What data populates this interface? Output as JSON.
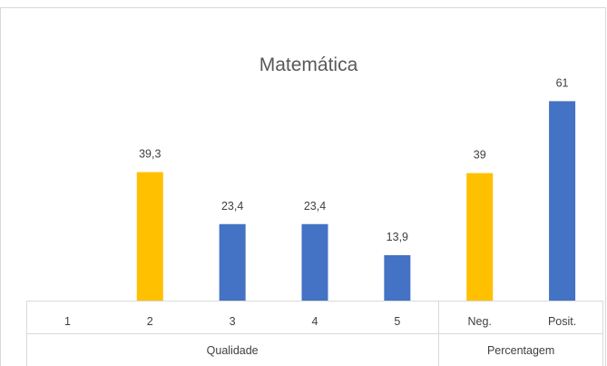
{
  "chart_data": {
    "type": "bar",
    "title": "Matemática",
    "categories": [
      "1",
      "2",
      "3",
      "4",
      "5",
      "Neg.",
      "Posit."
    ],
    "groups": [
      {
        "label": "Qualidade",
        "categories": [
          "1",
          "2",
          "3",
          "4",
          "5"
        ]
      },
      {
        "label": "Percentagem",
        "categories": [
          "Neg.",
          "Posit."
        ]
      }
    ],
    "values": [
      null,
      39.3,
      23.4,
      23.4,
      13.9,
      39,
      61
    ],
    "data_labels": [
      "",
      "39,3",
      "23,4",
      "23,4",
      "13,9",
      "39",
      "61"
    ],
    "bar_colors": [
      "#4472C4",
      "#FFC000",
      "#4472C4",
      "#4472C4",
      "#4472C4",
      "#FFC000",
      "#4472C4"
    ],
    "xlabel": "",
    "ylabel": "",
    "ylim": [
      0,
      70
    ],
    "grid": false,
    "legend": "none"
  }
}
